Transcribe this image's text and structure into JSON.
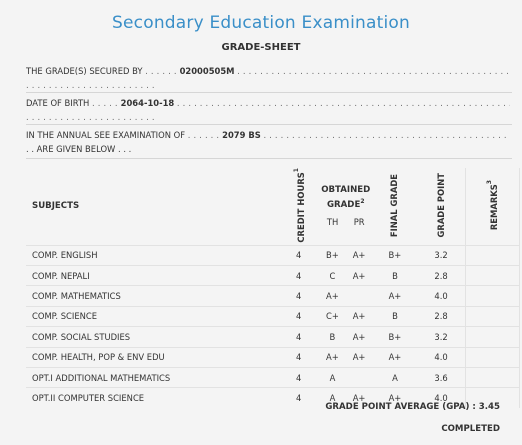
{
  "header": {
    "title": "Secondary Education Examination",
    "subtitle": "GRADE-SHEET"
  },
  "info": {
    "secured_by_label": "THE GRADE(S) SECURED BY",
    "secured_by_value": "02000505M",
    "dob_label": "DATE OF BIRTH",
    "dob_value": "2064-10-18",
    "exam_label": "IN THE ANNUAL SEE EXAMINATION OF",
    "exam_value": "2079 BS",
    "exam_tail": ". . ARE GIVEN BELOW . . ."
  },
  "table": {
    "headers": {
      "subjects": "SUBJECTS",
      "credit_hours": "CREDIT HOURS",
      "credit_hours_sup": "1",
      "obtained_grade": "OBTAINED GRADE",
      "obtained_grade_sup": "2",
      "th": "TH",
      "pr": "PR",
      "final_grade": "FINAL GRADE",
      "grade_point": "GRADE POINT",
      "remarks": "REMARKS",
      "remarks_sup": "3"
    },
    "rows": [
      {
        "subject": "COMP. ENGLISH",
        "credit": "4",
        "th": "B+",
        "pr": "A+",
        "final": "B+",
        "gp": "3.2",
        "remarks": ""
      },
      {
        "subject": "COMP. NEPALI",
        "credit": "4",
        "th": "C",
        "pr": "A+",
        "final": "B",
        "gp": "2.8",
        "remarks": ""
      },
      {
        "subject": "COMP. MATHEMATICS",
        "credit": "4",
        "th": "A+",
        "pr": "",
        "final": "A+",
        "gp": "4.0",
        "remarks": ""
      },
      {
        "subject": "COMP. SCIENCE",
        "credit": "4",
        "th": "C+",
        "pr": "A+",
        "final": "B",
        "gp": "2.8",
        "remarks": ""
      },
      {
        "subject": "COMP. SOCIAL STUDIES",
        "credit": "4",
        "th": "B",
        "pr": "A+",
        "final": "B+",
        "gp": "3.2",
        "remarks": ""
      },
      {
        "subject": "COMP. HEALTH, POP & ENV EDU",
        "credit": "4",
        "th": "A+",
        "pr": "A+",
        "final": "A+",
        "gp": "4.0",
        "remarks": ""
      },
      {
        "subject": "OPT.I ADDITIONAL MATHEMATICS",
        "credit": "4",
        "th": "A",
        "pr": "",
        "final": "A",
        "gp": "3.6",
        "remarks": ""
      },
      {
        "subject": "OPT.II COMPUTER SCIENCE",
        "credit": "4",
        "th": "A",
        "pr": "A+",
        "final": "A+",
        "gp": "4.0",
        "remarks": ""
      }
    ]
  },
  "summary": {
    "gpa_text": "GRADE POINT AVERAGE (GPA) : 3.45",
    "status": "COMPLETED"
  }
}
